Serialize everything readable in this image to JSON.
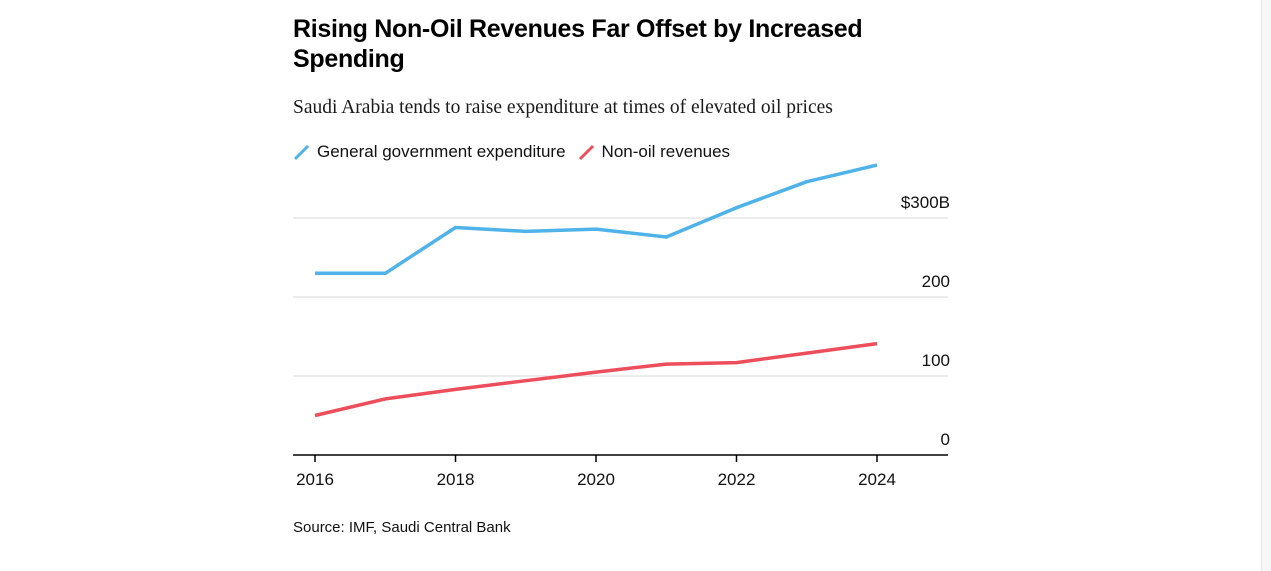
{
  "chart_data": {
    "type": "line",
    "title": "Rising Non-Oil Revenues Far Offset by Increased Spending",
    "subtitle": "Saudi Arabia tends to raise expenditure at times of elevated oil prices",
    "x": [
      2016,
      2017,
      2018,
      2019,
      2020,
      2021,
      2022,
      2023,
      2024
    ],
    "xticks": [
      {
        "value": 2016,
        "label": "2016"
      },
      {
        "value": 2018,
        "label": "2018"
      },
      {
        "value": 2020,
        "label": "2020"
      },
      {
        "value": 2022,
        "label": "2022"
      },
      {
        "value": 2024,
        "label": "2024"
      }
    ],
    "yticks": [
      {
        "value": 0,
        "label": "0"
      },
      {
        "value": 100,
        "label": "100"
      },
      {
        "value": 200,
        "label": "200"
      },
      {
        "value": 300,
        "label": "$300B"
      }
    ],
    "xlim": [
      2015.7,
      2025
    ],
    "ylim": [
      0,
      380
    ],
    "xlabel": "",
    "ylabel": "",
    "grid": true,
    "legend_position": "top-left",
    "series": [
      {
        "name": "General government expenditure",
        "color": "#4fb3ea",
        "values": [
          230,
          230,
          288,
          283,
          286,
          276,
          313,
          346,
          367
        ]
      },
      {
        "name": "Non-oil revenues",
        "color": "#ee4e5c",
        "values": [
          50,
          71,
          83,
          94,
          105,
          115,
          117,
          129,
          141
        ]
      }
    ],
    "source": "Source: IMF, Saudi Central Bank"
  }
}
